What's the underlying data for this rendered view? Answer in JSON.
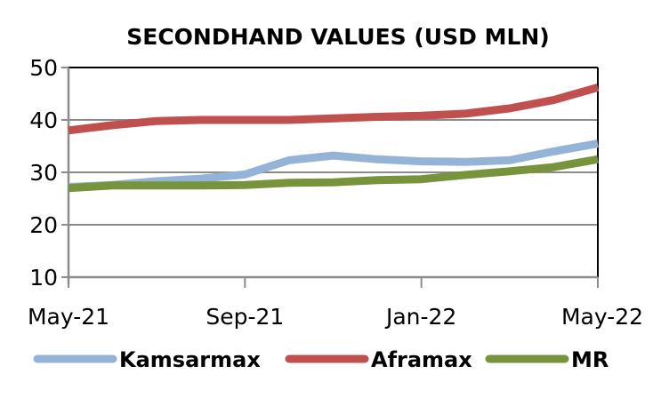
{
  "chart_data": {
    "type": "line",
    "title": "SECONDHAND VALUES (USD MLN)",
    "xlabel": "",
    "ylabel": "",
    "x": [
      "May-21",
      "Jun-21",
      "Jul-21",
      "Aug-21",
      "Sep-21",
      "Oct-21",
      "Nov-21",
      "Dec-21",
      "Jan-22",
      "Feb-22",
      "Mar-22",
      "Apr-22",
      "May-22"
    ],
    "x_tick_labels": [
      "May-21",
      "Sep-21",
      "Jan-22",
      "May-22"
    ],
    "ylim": [
      10,
      50
    ],
    "y_ticks": [
      10,
      20,
      30,
      40,
      50
    ],
    "grid": "horizontal",
    "legend_position": "bottom",
    "series": [
      {
        "name": "Kamsarmax",
        "color": "#95b3d7",
        "values": [
          27.2,
          27.6,
          28.3,
          28.8,
          29.6,
          32.3,
          33.2,
          32.5,
          32.1,
          32.0,
          32.3,
          34.0,
          35.5
        ]
      },
      {
        "name": "Aframax",
        "color": "#c0504d",
        "values": [
          38.0,
          39.0,
          39.8,
          40.0,
          40.0,
          40.0,
          40.3,
          40.6,
          40.8,
          41.2,
          42.2,
          43.8,
          46.2
        ]
      },
      {
        "name": "MR",
        "color": "#77933c",
        "values": [
          27.0,
          27.5,
          27.5,
          27.5,
          27.6,
          28.0,
          28.1,
          28.5,
          28.7,
          29.5,
          30.2,
          31.0,
          32.5
        ]
      }
    ]
  }
}
